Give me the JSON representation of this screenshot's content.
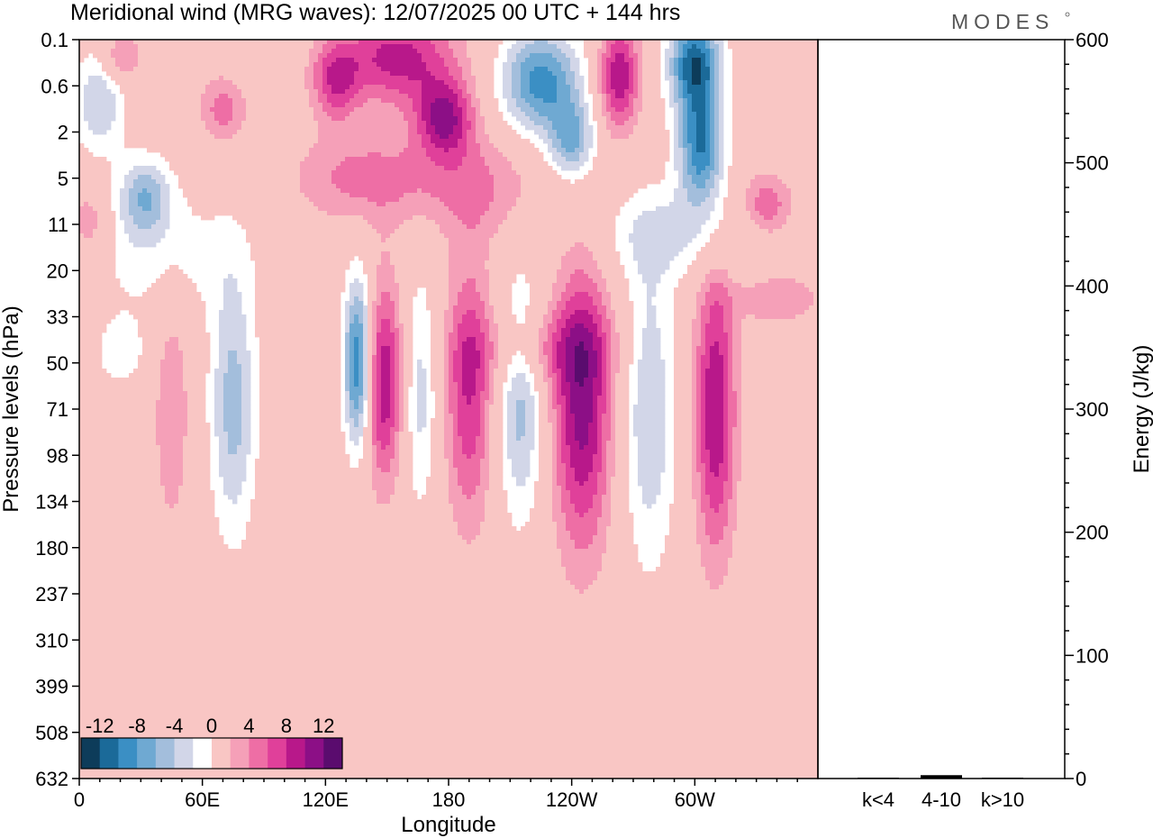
{
  "brand": "MODES",
  "chart_data": [
    {
      "type": "heatmap",
      "title": "Meridional wind (MRG waves):  12/07/2025  00 UTC  + 144 hrs",
      "xlabel": "Longitude",
      "ylabel": "Pressure levels (hPa)",
      "x_ticks": [
        "0",
        "60E",
        "120E",
        "180",
        "120W",
        "60W"
      ],
      "x_tick_values": [
        0,
        60,
        120,
        180,
        240,
        300
      ],
      "x_range": [
        0,
        360
      ],
      "y_ticks": [
        "0.1",
        "0.6",
        "2",
        "5",
        "11",
        "20",
        "33",
        "50",
        "71",
        "98",
        "134",
        "180",
        "237",
        "310",
        "399",
        "508",
        "632"
      ],
      "colorbar": {
        "labels": [
          "-12",
          "-8",
          "-4",
          "0",
          "4",
          "8",
          "12"
        ],
        "levels": [
          -14,
          -12,
          -10,
          -8,
          -6,
          -4,
          -2,
          2,
          4,
          6,
          8,
          10,
          12,
          14
        ],
        "colors": [
          "#0d3c5a",
          "#1b6a99",
          "#3b8fc4",
          "#6fa9d2",
          "#a3bedc",
          "#d2d6e8",
          "#ffffff",
          "#f9c6c4",
          "#f5a0b8",
          "#ee6ea5",
          "#e0409a",
          "#b8188a",
          "#8c0f86",
          "#5a0c6e"
        ],
        "placement": "bottom-left"
      },
      "blobs": [
        {
          "lon": 136,
          "lev": 7.0,
          "v": -13,
          "dlon": 5,
          "dlev": 1.3
        },
        {
          "lon": 148,
          "lev": 7.4,
          "v": 10,
          "dlon": 7,
          "dlev": 1.5
        },
        {
          "lon": 166,
          "lev": 7.6,
          "v": -5,
          "dlon": 6,
          "dlev": 1.8
        },
        {
          "lon": 190,
          "lev": 7.6,
          "v": 8,
          "dlon": 8,
          "dlev": 2.0
        },
        {
          "lon": 215,
          "lev": 7.8,
          "v": -7,
          "dlon": 8,
          "dlev": 1.8
        },
        {
          "lon": 245,
          "lev": 7.9,
          "v": 11,
          "dlon": 10,
          "dlev": 2.2
        },
        {
          "lon": 278,
          "lev": 8.0,
          "v": -6,
          "dlon": 9,
          "dlev": 2.4
        },
        {
          "lon": 310,
          "lev": 8.0,
          "v": 10,
          "dlon": 7,
          "dlev": 2.2
        },
        {
          "lon": 75,
          "lev": 7.9,
          "v": -7,
          "dlon": 8,
          "dlev": 2.0
        },
        {
          "lon": 45,
          "lev": 8.0,
          "v": 4,
          "dlon": 6,
          "dlev": 1.8
        },
        {
          "lon": 300,
          "lev": 0.5,
          "v": -13,
          "dlon": 9,
          "dlev": 0.7
        },
        {
          "lon": 303,
          "lev": 2.3,
          "v": -12,
          "dlon": 8,
          "dlev": 0.9
        },
        {
          "lon": 225,
          "lev": 0.9,
          "v": -11,
          "dlon": 14,
          "dlev": 0.8
        },
        {
          "lon": 155,
          "lev": 0.4,
          "v": 9,
          "dlon": 20,
          "dlev": 0.7
        },
        {
          "lon": 178,
          "lev": 1.7,
          "v": 10,
          "dlon": 10,
          "dlev": 0.6
        },
        {
          "lon": 263,
          "lev": 0.8,
          "v": 10,
          "dlon": 7,
          "dlev": 0.8
        },
        {
          "lon": 240,
          "lev": 2.2,
          "v": -8,
          "dlon": 8,
          "dlev": 0.6
        },
        {
          "lon": 125,
          "lev": 0.9,
          "v": 7,
          "dlon": 8,
          "dlev": 0.6
        },
        {
          "lon": 10,
          "lev": 1.3,
          "v": -6,
          "dlon": 9,
          "dlev": 0.8
        },
        {
          "lon": 32,
          "lev": 3.4,
          "v": -7,
          "dlon": 9,
          "dlev": 0.6
        },
        {
          "lon": 335,
          "lev": 3.6,
          "v": 6,
          "dlon": 9,
          "dlev": 0.5
        },
        {
          "lon": 40,
          "lev": 4.6,
          "v": -3,
          "dlon": 30,
          "dlev": 1.0
        },
        {
          "lon": 5,
          "lev": 4.0,
          "v": 4,
          "dlon": 7,
          "dlev": 0.6
        },
        {
          "lon": 20,
          "lev": 0.4,
          "v": 5,
          "dlon": 7,
          "dlev": 0.4
        },
        {
          "lon": 70,
          "lev": 1.5,
          "v": 5,
          "dlon": 8,
          "dlev": 0.5
        },
        {
          "lon": 140,
          "lev": 3.0,
          "v": 5,
          "dlon": 25,
          "dlev": 0.7
        },
        {
          "lon": 195,
          "lev": 3.2,
          "v": 4,
          "dlon": 20,
          "dlev": 0.8
        },
        {
          "lon": 225,
          "lev": 6.7,
          "v": 4,
          "dlon": 25,
          "dlev": 0.6
        },
        {
          "lon": 290,
          "lev": 4.2,
          "v": -4,
          "dlon": 30,
          "dlev": 0.7
        },
        {
          "lon": 340,
          "lev": 5.6,
          "v": 4,
          "dlon": 15,
          "dlev": 0.4
        },
        {
          "lon": 20,
          "lev": 6.8,
          "v": -3,
          "dlon": 10,
          "dlev": 0.6
        }
      ]
    },
    {
      "type": "bar",
      "ylabel": "Energy (J/kg)",
      "categories": [
        "k<4",
        "4-10",
        "k>10"
      ],
      "values": [
        0,
        2,
        0
      ],
      "ylim": [
        0,
        600
      ],
      "y_ticks": [
        "0",
        "100",
        "200",
        "300",
        "400",
        "500",
        "600"
      ]
    }
  ]
}
